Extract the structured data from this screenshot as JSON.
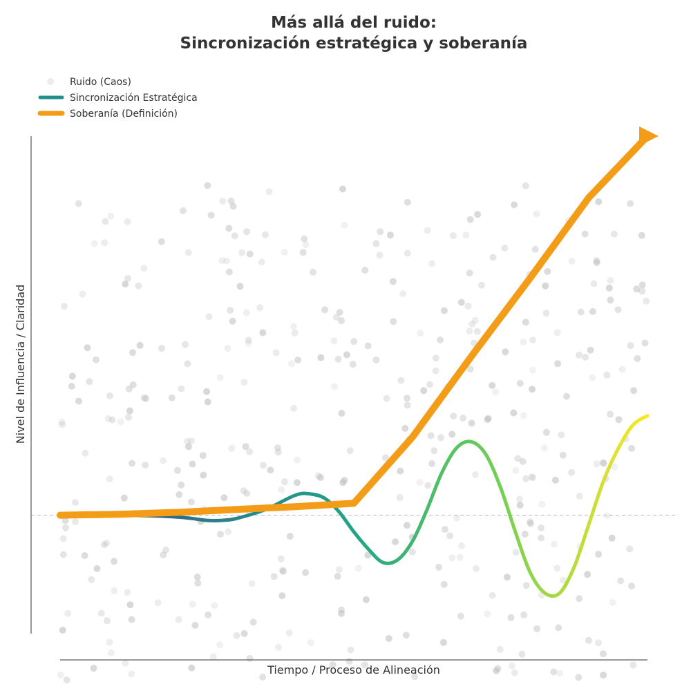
{
  "chart_data": {
    "type": "line",
    "title_line1": "Más allá del ruido:",
    "title_line2": "Sincronización estratégica y soberanía",
    "xlabel": "Tiempo / Proceso de Alineación",
    "ylabel": "Nivel de Influencia / Claridad",
    "xlim": [
      0,
      10
    ],
    "ylim": [
      -2.5,
      8.0
    ],
    "grid": false,
    "reference_line": {
      "y": 0,
      "style": "dashed"
    },
    "legend": {
      "placement": "top-left",
      "entries": [
        {
          "label": "Ruido (Caos)",
          "kind": "marker"
        },
        {
          "label": "Sincronización Estratégica",
          "kind": "line"
        },
        {
          "label": "Soberanía (Definición)",
          "kind": "line"
        }
      ]
    },
    "series": [
      {
        "name": "Sincronización Estratégica",
        "kind": "gradient_line",
        "colormap": [
          "#3b2f80",
          "#2c7c8e",
          "#20a486",
          "#75d054",
          "#fde725"
        ],
        "x": [
          0,
          0.5,
          1,
          1.5,
          2,
          2.25,
          2.5,
          2.75,
          3,
          3.5,
          4,
          4.25,
          4.5,
          4.75,
          5,
          5.25,
          5.5,
          5.75,
          6,
          6.25,
          6.5,
          6.75,
          7,
          7.25,
          7.5,
          7.75,
          8,
          8.25,
          8.5,
          8.75,
          9,
          9.25,
          9.5,
          9.75,
          10
        ],
        "y": [
          0,
          0,
          0,
          -0.01,
          -0.04,
          -0.07,
          -0.11,
          -0.11,
          -0.07,
          0.12,
          0.42,
          0.45,
          0.36,
          0.07,
          -0.35,
          -0.72,
          -1.0,
          -0.94,
          -0.55,
          0.13,
          0.9,
          1.42,
          1.55,
          1.28,
          0.58,
          -0.35,
          -1.2,
          -1.64,
          -1.65,
          -1.1,
          -0.2,
          0.72,
          1.4,
          1.9,
          2.1
        ]
      },
      {
        "name": "Soberanía (Definición)",
        "kind": "line",
        "color": "#f39c18",
        "x": [
          0,
          1,
          2,
          3,
          4,
          5,
          6,
          7,
          8,
          9,
          10
        ],
        "y": [
          0,
          0.02,
          0.06,
          0.12,
          0.18,
          0.25,
          1.65,
          3.35,
          5.0,
          6.7,
          8.0
        ],
        "arrowhead": true
      }
    ],
    "scatter": {
      "name": "Ruido (Caos)",
      "color": "#bdbdbd",
      "count": 400,
      "x_range": [
        0,
        10
      ],
      "y_range": [
        -3.5,
        7.0
      ]
    }
  }
}
